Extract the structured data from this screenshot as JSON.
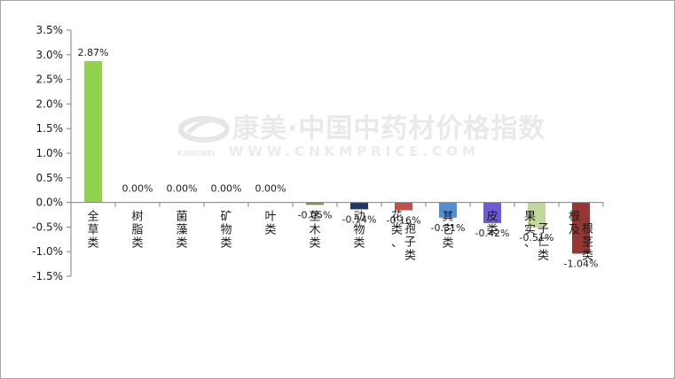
{
  "watermark": {
    "title": "康美·中国中药材价格指数",
    "english": "KANGMEI",
    "url": "WWW.CNKMPRICE.COM"
  },
  "chart_data": {
    "type": "bar",
    "title": "",
    "xlabel": "",
    "ylabel": "",
    "ylim": [
      -1.5,
      3.5
    ],
    "yticks": [
      "3.5%",
      "3.0%",
      "2.5%",
      "2.0%",
      "1.5%",
      "1.0%",
      "0.5%",
      "0.0%",
      "-0.5%",
      "-1.0%",
      "-1.5%"
    ],
    "grid": false,
    "categories": [
      "全草类",
      "树脂类",
      "菌藻类",
      "矿物类",
      "叶类",
      "茎木类",
      "动物类",
      "花类、孢子类",
      "其它类",
      "皮类",
      "果实、子仁类",
      "根及根茎类"
    ],
    "values": [
      2.87,
      0.0,
      0.0,
      0.0,
      0.0,
      -0.05,
      -0.14,
      -0.16,
      -0.31,
      -0.42,
      -0.51,
      -1.04
    ],
    "data_labels": [
      "2.87%",
      "0.00%",
      "0.00%",
      "0.00%",
      "0.00%",
      "-0.05%",
      "-0.14%",
      "-0.16%",
      "-0.31%",
      "-0.42%",
      "-0.51%",
      "-1.04%"
    ],
    "colors": [
      "#92d050",
      "#c0504d",
      "#9bbb59",
      "#8064a2",
      "#4bacc6",
      "#948a54",
      "#1f3864",
      "#c0504d",
      "#558ed5",
      "#6f5bd6",
      "#c3d69b",
      "#953735"
    ]
  }
}
